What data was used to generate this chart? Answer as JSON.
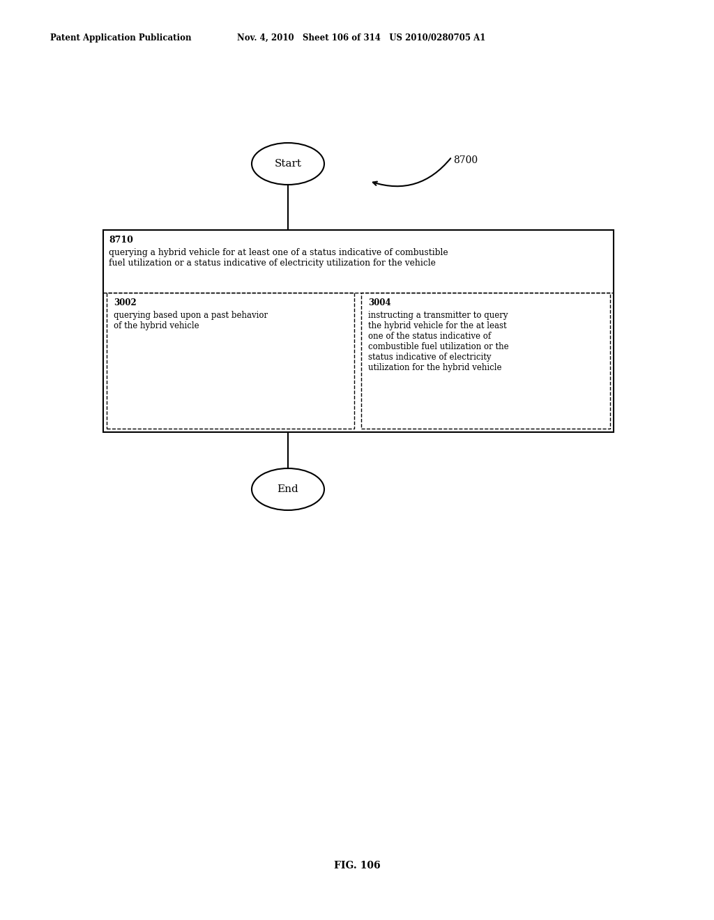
{
  "title_left": "Patent Application Publication",
  "title_right": "Nov. 4, 2010   Sheet 106 of 314   US 2010/0280705 A1",
  "fig_label": "FIG. 106",
  "diagram_label": "8700",
  "start_label": "Start",
  "end_label": "End",
  "outer_box_label": "8710",
  "outer_box_text": "querying a hybrid vehicle for at least one of a status indicative of combustible\nfuel utilization or a status indicative of electricity utilization for the vehicle",
  "left_inner_label": "3002",
  "left_inner_text": "querying based upon a past behavior\nof the hybrid vehicle",
  "right_inner_label": "3004",
  "right_inner_text": "instructing a transmitter to query\nthe hybrid vehicle for the at least\none of the status indicative of\ncombustible fuel utilization or the\nstatus indicative of electricity\nutilization for the hybrid vehicle",
  "bg_color": "#ffffff",
  "text_color": "#000000",
  "line_color": "#000000"
}
